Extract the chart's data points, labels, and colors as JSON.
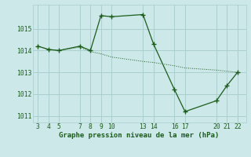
{
  "xlabel": "Graphe pression niveau de la mer (hPa)",
  "background_color": "#cce8e8",
  "grid_color": "#aacece",
  "line_color": "#1a5c1a",
  "x_ticks": [
    3,
    4,
    5,
    7,
    8,
    9,
    10,
    13,
    14,
    16,
    17,
    20,
    21,
    22
  ],
  "series1_x": [
    3,
    4,
    5,
    7,
    8,
    9,
    10,
    13,
    14,
    16,
    17,
    20,
    21,
    22
  ],
  "series1_y": [
    1014.2,
    1014.05,
    1014.0,
    1014.2,
    1014.0,
    1015.6,
    1015.55,
    1015.65,
    1014.3,
    1012.2,
    1011.2,
    1011.7,
    1012.4,
    1013.0
  ],
  "series2_x": [
    3,
    4,
    5,
    7,
    8,
    9,
    10,
    13,
    14,
    16,
    17,
    20,
    21,
    22
  ],
  "series2_y": [
    1014.2,
    1014.05,
    1014.0,
    1014.15,
    1013.95,
    1013.85,
    1013.7,
    1013.5,
    1013.45,
    1013.3,
    1013.2,
    1013.1,
    1013.05,
    1013.0
  ],
  "ylim": [
    1010.7,
    1016.1
  ],
  "xlim": [
    2.5,
    22.8
  ],
  "yticks": [
    1011,
    1012,
    1013,
    1014,
    1015
  ],
  "ytick_labels": [
    "1011",
    "1012",
    "1013",
    "1014",
    "1015"
  ],
  "fontsize_xlabel": 6.5,
  "fontsize_ticks": 5.8
}
